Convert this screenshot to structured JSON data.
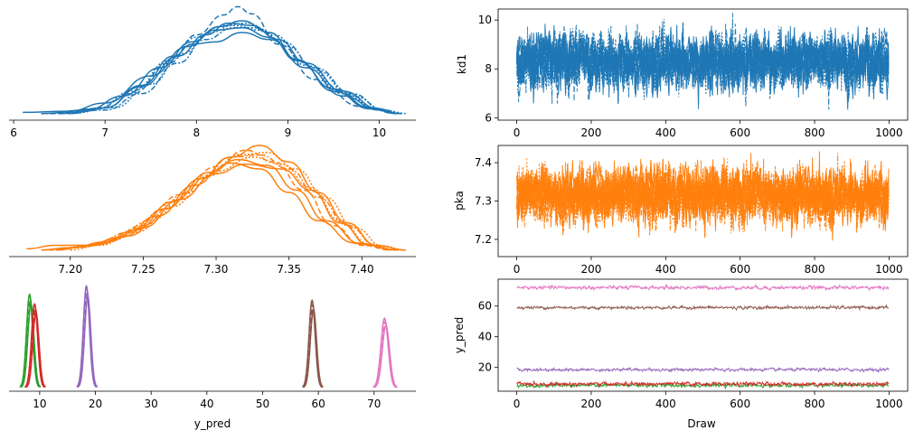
{
  "chart_data": [
    {
      "panel": "kd1-density",
      "type": "line",
      "xlabel": "",
      "ylabel": "",
      "xlim": [
        5.95,
        10.4
      ],
      "xticks": [
        "6",
        "7",
        "8",
        "9",
        "10"
      ],
      "grid": false,
      "color": "#1f77b4",
      "description_of_series": "8 overlapping chain kernel-density curves",
      "series": [
        {
          "x": [
            6.1,
            6.6,
            7.0,
            7.5,
            7.9,
            8.2,
            8.5,
            8.8,
            9.1,
            9.5,
            9.9,
            10.25
          ],
          "y": [
            0.02,
            0.03,
            0.1,
            0.33,
            0.58,
            0.72,
            0.74,
            0.66,
            0.46,
            0.22,
            0.06,
            0.01
          ]
        },
        {
          "x": [
            6.3,
            6.8,
            7.2,
            7.6,
            7.95,
            8.25,
            8.5,
            8.8,
            9.1,
            9.5,
            9.9,
            10.2
          ],
          "y": [
            0.01,
            0.04,
            0.16,
            0.4,
            0.62,
            0.75,
            0.8,
            0.7,
            0.47,
            0.2,
            0.05,
            0.01
          ]
        },
        {
          "x": [
            6.4,
            6.9,
            7.3,
            7.7,
            8.0,
            8.3,
            8.45,
            8.6,
            8.9,
            9.3,
            9.8,
            10.2
          ],
          "y": [
            0.01,
            0.05,
            0.18,
            0.44,
            0.68,
            0.85,
            0.92,
            0.86,
            0.6,
            0.3,
            0.07,
            0.01
          ]
        },
        {
          "x": [
            6.5,
            7.0,
            7.4,
            7.75,
            7.95,
            8.2,
            8.5,
            8.8,
            9.2,
            9.6,
            10.0,
            10.2
          ],
          "y": [
            0.01,
            0.06,
            0.25,
            0.5,
            0.6,
            0.62,
            0.7,
            0.64,
            0.4,
            0.16,
            0.04,
            0.01
          ]
        },
        {
          "x": [
            6.4,
            6.9,
            7.3,
            7.7,
            8.0,
            8.3,
            8.55,
            8.85,
            9.2,
            9.6,
            10.0,
            10.25
          ],
          "y": [
            0.01,
            0.05,
            0.2,
            0.46,
            0.66,
            0.76,
            0.78,
            0.68,
            0.42,
            0.18,
            0.04,
            0.01
          ]
        },
        {
          "x": [
            6.6,
            7.0,
            7.4,
            7.8,
            8.1,
            8.35,
            8.6,
            8.9,
            9.2,
            9.6,
            10.0,
            10.2
          ],
          "y": [
            0.01,
            0.06,
            0.24,
            0.5,
            0.68,
            0.78,
            0.76,
            0.64,
            0.44,
            0.2,
            0.05,
            0.01
          ]
        },
        {
          "x": [
            6.5,
            7.0,
            7.4,
            7.8,
            8.1,
            8.4,
            8.65,
            8.95,
            9.3,
            9.7,
            10.05,
            10.25
          ],
          "y": [
            0.01,
            0.04,
            0.18,
            0.44,
            0.64,
            0.74,
            0.74,
            0.62,
            0.4,
            0.18,
            0.04,
            0.01
          ]
        },
        {
          "x": [
            6.6,
            7.1,
            7.5,
            7.85,
            8.15,
            8.4,
            8.7,
            9.0,
            9.3,
            9.7,
            10.1,
            10.3
          ],
          "y": [
            0.01,
            0.06,
            0.26,
            0.52,
            0.7,
            0.76,
            0.72,
            0.58,
            0.38,
            0.16,
            0.03,
            0.01
          ]
        }
      ]
    },
    {
      "panel": "kd1-trace",
      "type": "line",
      "xlabel": "",
      "ylabel": "kd1",
      "xlim": [
        -50,
        1050
      ],
      "ylim": [
        5.9,
        10.45
      ],
      "xticks": [
        "0",
        "200",
        "400",
        "600",
        "800",
        "1000"
      ],
      "yticks": [
        "6",
        "8",
        "10"
      ],
      "color": "#1f77b4",
      "draws": 1000,
      "chains": 8,
      "trace_stats": {
        "center": 8.3,
        "spread": 0.55,
        "min": 6.1,
        "max": 10.3
      }
    },
    {
      "panel": "pka-density",
      "type": "line",
      "xlabel": "",
      "ylabel": "",
      "xlim": [
        7.158,
        7.437
      ],
      "xticks": [
        "7.20",
        "7.25",
        "7.30",
        "7.35",
        "7.40"
      ],
      "grid": false,
      "color": "#ff7f0e",
      "description_of_series": "8 overlapping chain kernel-density curves",
      "series": [
        {
          "x": [
            7.17,
            7.19,
            7.215,
            7.24,
            7.265,
            7.29,
            7.31,
            7.33,
            7.35,
            7.37,
            7.395,
            7.425
          ],
          "y": [
            0.02,
            0.05,
            0.05,
            0.13,
            0.36,
            0.62,
            0.75,
            0.7,
            0.5,
            0.26,
            0.07,
            0.01
          ]
        },
        {
          "x": [
            7.18,
            7.2,
            7.22,
            7.245,
            7.27,
            7.295,
            7.315,
            7.335,
            7.355,
            7.375,
            7.4,
            7.425
          ],
          "y": [
            0.01,
            0.03,
            0.06,
            0.18,
            0.42,
            0.67,
            0.78,
            0.73,
            0.52,
            0.26,
            0.06,
            0.01
          ]
        },
        {
          "x": [
            7.185,
            7.205,
            7.225,
            7.25,
            7.275,
            7.3,
            7.32,
            7.34,
            7.36,
            7.38,
            7.4,
            7.42
          ],
          "y": [
            0.01,
            0.03,
            0.08,
            0.22,
            0.48,
            0.72,
            0.86,
            0.76,
            0.52,
            0.22,
            0.05,
            0.01
          ]
        },
        {
          "x": [
            7.18,
            7.2,
            7.225,
            7.25,
            7.275,
            7.3,
            7.32,
            7.345,
            7.365,
            7.385,
            7.405,
            7.42
          ],
          "y": [
            0.01,
            0.03,
            0.08,
            0.2,
            0.44,
            0.66,
            0.74,
            0.7,
            0.52,
            0.24,
            0.05,
            0.01
          ]
        },
        {
          "x": [
            7.185,
            7.21,
            7.23,
            7.255,
            7.28,
            7.3,
            7.325,
            7.345,
            7.365,
            7.385,
            7.405,
            7.425
          ],
          "y": [
            0.01,
            0.04,
            0.1,
            0.26,
            0.5,
            0.68,
            0.8,
            0.74,
            0.54,
            0.26,
            0.06,
            0.01
          ]
        },
        {
          "x": [
            7.19,
            7.21,
            7.235,
            7.26,
            7.285,
            7.31,
            7.33,
            7.35,
            7.37,
            7.39,
            7.41,
            7.43
          ],
          "y": [
            0.01,
            0.04,
            0.12,
            0.3,
            0.56,
            0.8,
            0.9,
            0.76,
            0.5,
            0.24,
            0.05,
            0.01
          ]
        },
        {
          "x": [
            7.19,
            7.215,
            7.24,
            7.265,
            7.29,
            7.31,
            7.33,
            7.35,
            7.37,
            7.39,
            7.41,
            7.43
          ],
          "y": [
            0.01,
            0.05,
            0.16,
            0.36,
            0.62,
            0.8,
            0.82,
            0.7,
            0.46,
            0.22,
            0.05,
            0.01
          ]
        },
        {
          "x": [
            7.2,
            7.22,
            7.245,
            7.27,
            7.295,
            7.315,
            7.335,
            7.355,
            7.375,
            7.395,
            7.415,
            7.43
          ],
          "y": [
            0.01,
            0.05,
            0.16,
            0.38,
            0.64,
            0.82,
            0.84,
            0.7,
            0.46,
            0.2,
            0.04,
            0.01
          ]
        }
      ]
    },
    {
      "panel": "pka-trace",
      "type": "line",
      "xlabel": "",
      "ylabel": "pka",
      "xlim": [
        -50,
        1050
      ],
      "ylim": [
        7.155,
        7.445
      ],
      "xticks": [
        "0",
        "200",
        "400",
        "600",
        "800",
        "1000"
      ],
      "yticks": [
        "7.2",
        "7.3",
        "7.4"
      ],
      "color": "#ff7f0e",
      "draws": 1000,
      "chains": 8,
      "trace_stats": {
        "center": 7.315,
        "spread": 0.035,
        "min": 7.17,
        "max": 7.43
      }
    },
    {
      "panel": "y_pred-density",
      "type": "line",
      "xlabel": "y_pred",
      "ylabel": "",
      "xlim": [
        4.5,
        77.5
      ],
      "xticks": [
        "10",
        "20",
        "30",
        "40",
        "50",
        "60",
        "70"
      ],
      "grid": false,
      "description_of_series": "one peaked density per y_pred component, overlapping chains",
      "series": [
        {
          "color": "#2ca02c",
          "mu": 8.3,
          "sigma": 0.55,
          "peak": 0.78
        },
        {
          "color": "#d62728",
          "mu": 9.2,
          "sigma": 0.55,
          "peak": 0.7
        },
        {
          "color": "#9467bd",
          "mu": 18.5,
          "sigma": 0.55,
          "peak": 0.85
        },
        {
          "color": "#8c564b",
          "mu": 59.0,
          "sigma": 0.55,
          "peak": 0.73
        },
        {
          "color": "#e377c2",
          "mu": 72.0,
          "sigma": 0.65,
          "peak": 0.58
        }
      ]
    },
    {
      "panel": "y_pred-trace",
      "type": "line",
      "xlabel": "Draw",
      "ylabel": "y_pred",
      "xlim": [
        -50,
        1050
      ],
      "ylim": [
        4.5,
        77.5
      ],
      "xticks": [
        "0",
        "200",
        "400",
        "600",
        "800",
        "1000"
      ],
      "yticks": [
        "20",
        "40",
        "60"
      ],
      "draws": 1000,
      "series": [
        {
          "color": "#2ca02c",
          "center": 8.3,
          "spread": 0.6
        },
        {
          "color": "#d62728",
          "center": 9.2,
          "spread": 0.6
        },
        {
          "color": "#9467bd",
          "center": 18.5,
          "spread": 0.5
        },
        {
          "color": "#8c564b",
          "center": 59.0,
          "spread": 0.5
        },
        {
          "color": "#e377c2",
          "center": 72.0,
          "spread": 0.6
        }
      ]
    }
  ]
}
